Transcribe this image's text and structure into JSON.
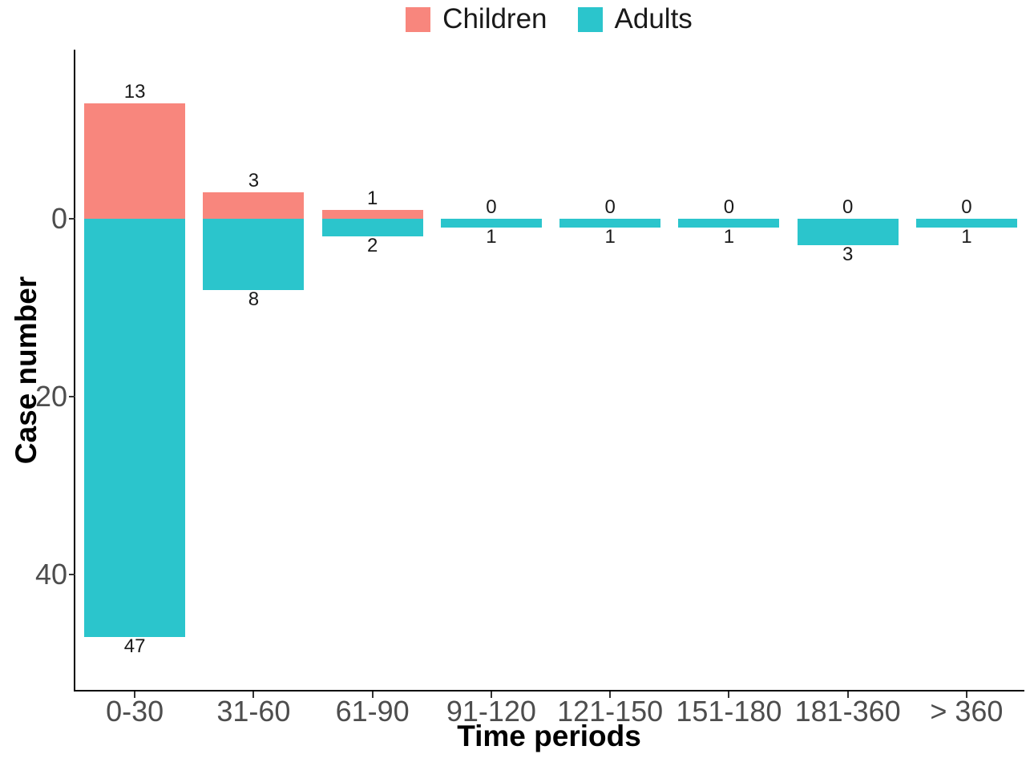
{
  "chart_data": {
    "type": "bar",
    "variant": "diverging-stacked",
    "title": "",
    "xlabel": "Time periods",
    "ylabel": "Case number",
    "categories": [
      "0-30",
      "31-60",
      "61-90",
      "91-120",
      "121-150",
      "151-180",
      "181-360",
      "> 360"
    ],
    "series": [
      {
        "name": "Children",
        "color": "#F8867D",
        "direction": "up",
        "values": [
          13,
          3,
          1,
          0,
          0,
          0,
          0,
          0
        ]
      },
      {
        "name": "Adults",
        "color": "#2BC5CC",
        "direction": "down",
        "values": [
          47,
          8,
          2,
          1,
          1,
          1,
          3,
          1
        ]
      }
    ],
    "y_ticks": [
      0,
      20,
      40
    ],
    "ylim": [
      -19,
      53
    ],
    "y_axis_note": "0 at top; Children counts extend above the zero line, Adults counts below; tick values increase downward",
    "grid": false,
    "legend_position": "top-center",
    "bar_value_labels": true,
    "style_colors": {
      "background": "#FFFFFF",
      "axis_line": "#000000",
      "tick_mark": "#333333",
      "tick_label_text": "#4D4D4D",
      "value_label_text": "#1A1A1A",
      "title_text": "#000000"
    }
  }
}
